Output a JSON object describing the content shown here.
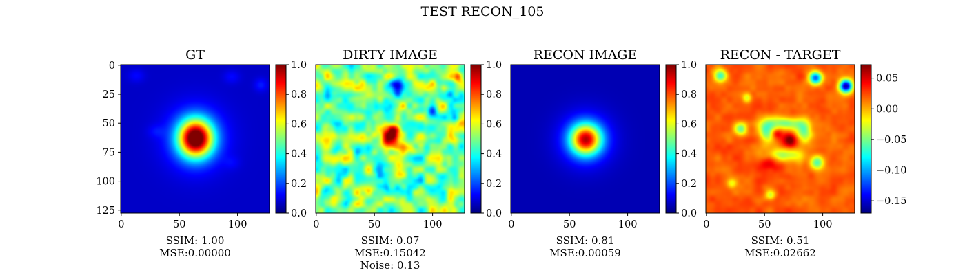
{
  "title": "TEST RECON_105",
  "jet_stops": [
    "#00007f",
    "#0000ff",
    "#007fff",
    "#00ffff",
    "#7fff7f",
    "#ffff00",
    "#ff7f00",
    "#ff0000",
    "#7f0000"
  ],
  "chart_data": [
    {
      "type": "heatmap",
      "title": "GT",
      "image_size": 128,
      "xticks": [
        0,
        50,
        100
      ],
      "yticks": [
        0,
        25,
        50,
        75,
        100,
        125
      ],
      "show_yticks": true,
      "colorbar": {
        "min": 0.0,
        "max": 1.0,
        "ticks": [
          "0.0",
          "0.2",
          "0.4",
          "0.6",
          "0.8",
          "1.0"
        ],
        "tick_values": [
          0.0,
          0.2,
          0.4,
          0.6,
          0.8,
          1.0
        ]
      },
      "caption": [
        "SSIM: 1.00",
        "MSE:0.00000"
      ],
      "field": {
        "background": 0.07,
        "blobs": [
          {
            "cx": 64,
            "cy": 63,
            "sx": 10,
            "sy": 11,
            "amp": 0.9
          },
          {
            "cx": 64,
            "cy": 63,
            "sx": 18,
            "sy": 19,
            "amp": 0.18
          },
          {
            "cx": 13,
            "cy": 9,
            "sx": 5,
            "sy": 4,
            "amp": 0.06
          },
          {
            "cx": 95,
            "cy": 10,
            "sx": 5,
            "sy": 4,
            "amp": 0.06
          },
          {
            "cx": 120,
            "cy": 17,
            "sx": 4,
            "sy": 4,
            "amp": 0.08
          },
          {
            "cx": 30,
            "cy": 57,
            "sx": 5,
            "sy": 4,
            "amp": 0.05
          },
          {
            "cx": 95,
            "cy": 84,
            "sx": 5,
            "sy": 4,
            "amp": 0.04
          }
        ]
      }
    },
    {
      "type": "heatmap",
      "title": "DIRTY IMAGE",
      "image_size": 128,
      "xticks": [
        0,
        50,
        100
      ],
      "yticks": [],
      "show_yticks": false,
      "colorbar": {
        "min": 0.0,
        "max": 1.0,
        "ticks": [
          "0.0",
          "0.2",
          "0.4",
          "0.6",
          "0.8",
          "1.0"
        ],
        "tick_values": [
          0.0,
          0.2,
          0.4,
          0.6,
          0.8,
          1.0
        ]
      },
      "caption": [
        "SSIM: 0.07",
        "MSE:0.15042",
        "Noise: 0.13"
      ],
      "field": {
        "background": 0.5,
        "noise": 0.26,
        "blobs": [
          {
            "cx": 63,
            "cy": 64,
            "sx": 6,
            "sy": 6,
            "amp": 0.5
          },
          {
            "cx": 68,
            "cy": 57,
            "sx": 4,
            "sy": 5,
            "amp": 0.3
          },
          {
            "cx": 122,
            "cy": 10,
            "sx": 3,
            "sy": 3,
            "amp": 0.35
          },
          {
            "cx": 69,
            "cy": 18,
            "sx": 5,
            "sy": 5,
            "amp": -0.35
          },
          {
            "cx": 100,
            "cy": 40,
            "sx": 4,
            "sy": 4,
            "amp": -0.3
          }
        ]
      }
    },
    {
      "type": "heatmap",
      "title": "RECON IMAGE",
      "image_size": 128,
      "xticks": [
        0,
        50,
        100
      ],
      "yticks": [],
      "show_yticks": false,
      "colorbar": {
        "min": 0.0,
        "max": 1.0,
        "ticks": [
          "0.0",
          "0.2",
          "0.4",
          "0.6",
          "0.8",
          "1.0"
        ],
        "tick_values": [
          0.0,
          0.2,
          0.4,
          0.6,
          0.8,
          1.0
        ]
      },
      "caption": [
        "SSIM: 0.81",
        "MSE:0.00059"
      ],
      "field": {
        "background": 0.05,
        "blobs": [
          {
            "cx": 64,
            "cy": 64,
            "sx": 9,
            "sy": 9,
            "amp": 0.72
          },
          {
            "cx": 64,
            "cy": 64,
            "sx": 16,
            "sy": 16,
            "amp": 0.18
          }
        ]
      }
    },
    {
      "type": "heatmap",
      "title": "RECON - TARGET",
      "image_size": 128,
      "xticks": [
        0,
        50,
        100
      ],
      "yticks": [],
      "show_yticks": false,
      "colorbar": {
        "min": -0.17,
        "max": 0.072,
        "ticks": [
          "0.05",
          "0.00",
          "−0.05",
          "−0.10",
          "−0.15"
        ],
        "tick_values": [
          0.05,
          0.0,
          -0.05,
          -0.1,
          -0.15
        ]
      },
      "caption": [
        "SSIM: 0.51",
        "MSE:0.02662"
      ],
      "field": {
        "background": 0.02,
        "noise": 0.012,
        "blobs": [
          {
            "cx": 12,
            "cy": 9,
            "sx": 4,
            "sy": 4,
            "amp": -0.09
          },
          {
            "cx": 94,
            "cy": 11,
            "sx": 4,
            "sy": 4,
            "amp": -0.14
          },
          {
            "cx": 120,
            "cy": 18,
            "sx": 4,
            "sy": 4,
            "amp": -0.18
          },
          {
            "cx": 67,
            "cy": 50,
            "sx": 11,
            "sy": 4,
            "amp": -0.07
          },
          {
            "cx": 52,
            "cy": 57,
            "sx": 5,
            "sy": 7,
            "amp": -0.07
          },
          {
            "cx": 84,
            "cy": 57,
            "sx": 5,
            "sy": 7,
            "amp": -0.07
          },
          {
            "cx": 67,
            "cy": 78,
            "sx": 11,
            "sy": 4,
            "amp": -0.06
          },
          {
            "cx": 30,
            "cy": 55,
            "sx": 4,
            "sy": 4,
            "amp": -0.07
          },
          {
            "cx": 95,
            "cy": 84,
            "sx": 4,
            "sy": 4,
            "amp": -0.08
          },
          {
            "cx": 35,
            "cy": 28,
            "sx": 3,
            "sy": 3,
            "amp": -0.05
          },
          {
            "cx": 72,
            "cy": 65,
            "sx": 4,
            "sy": 4,
            "amp": 0.06
          },
          {
            "cx": 60,
            "cy": 59,
            "sx": 3,
            "sy": 3,
            "amp": 0.04
          },
          {
            "cx": 55,
            "cy": 85,
            "sx": 8,
            "sy": 5,
            "amp": 0.03
          },
          {
            "cx": 55,
            "cy": 112,
            "sx": 3,
            "sy": 3,
            "amp": -0.05
          },
          {
            "cx": 22,
            "cy": 102,
            "sx": 3,
            "sy": 3,
            "amp": -0.04
          }
        ]
      }
    }
  ]
}
